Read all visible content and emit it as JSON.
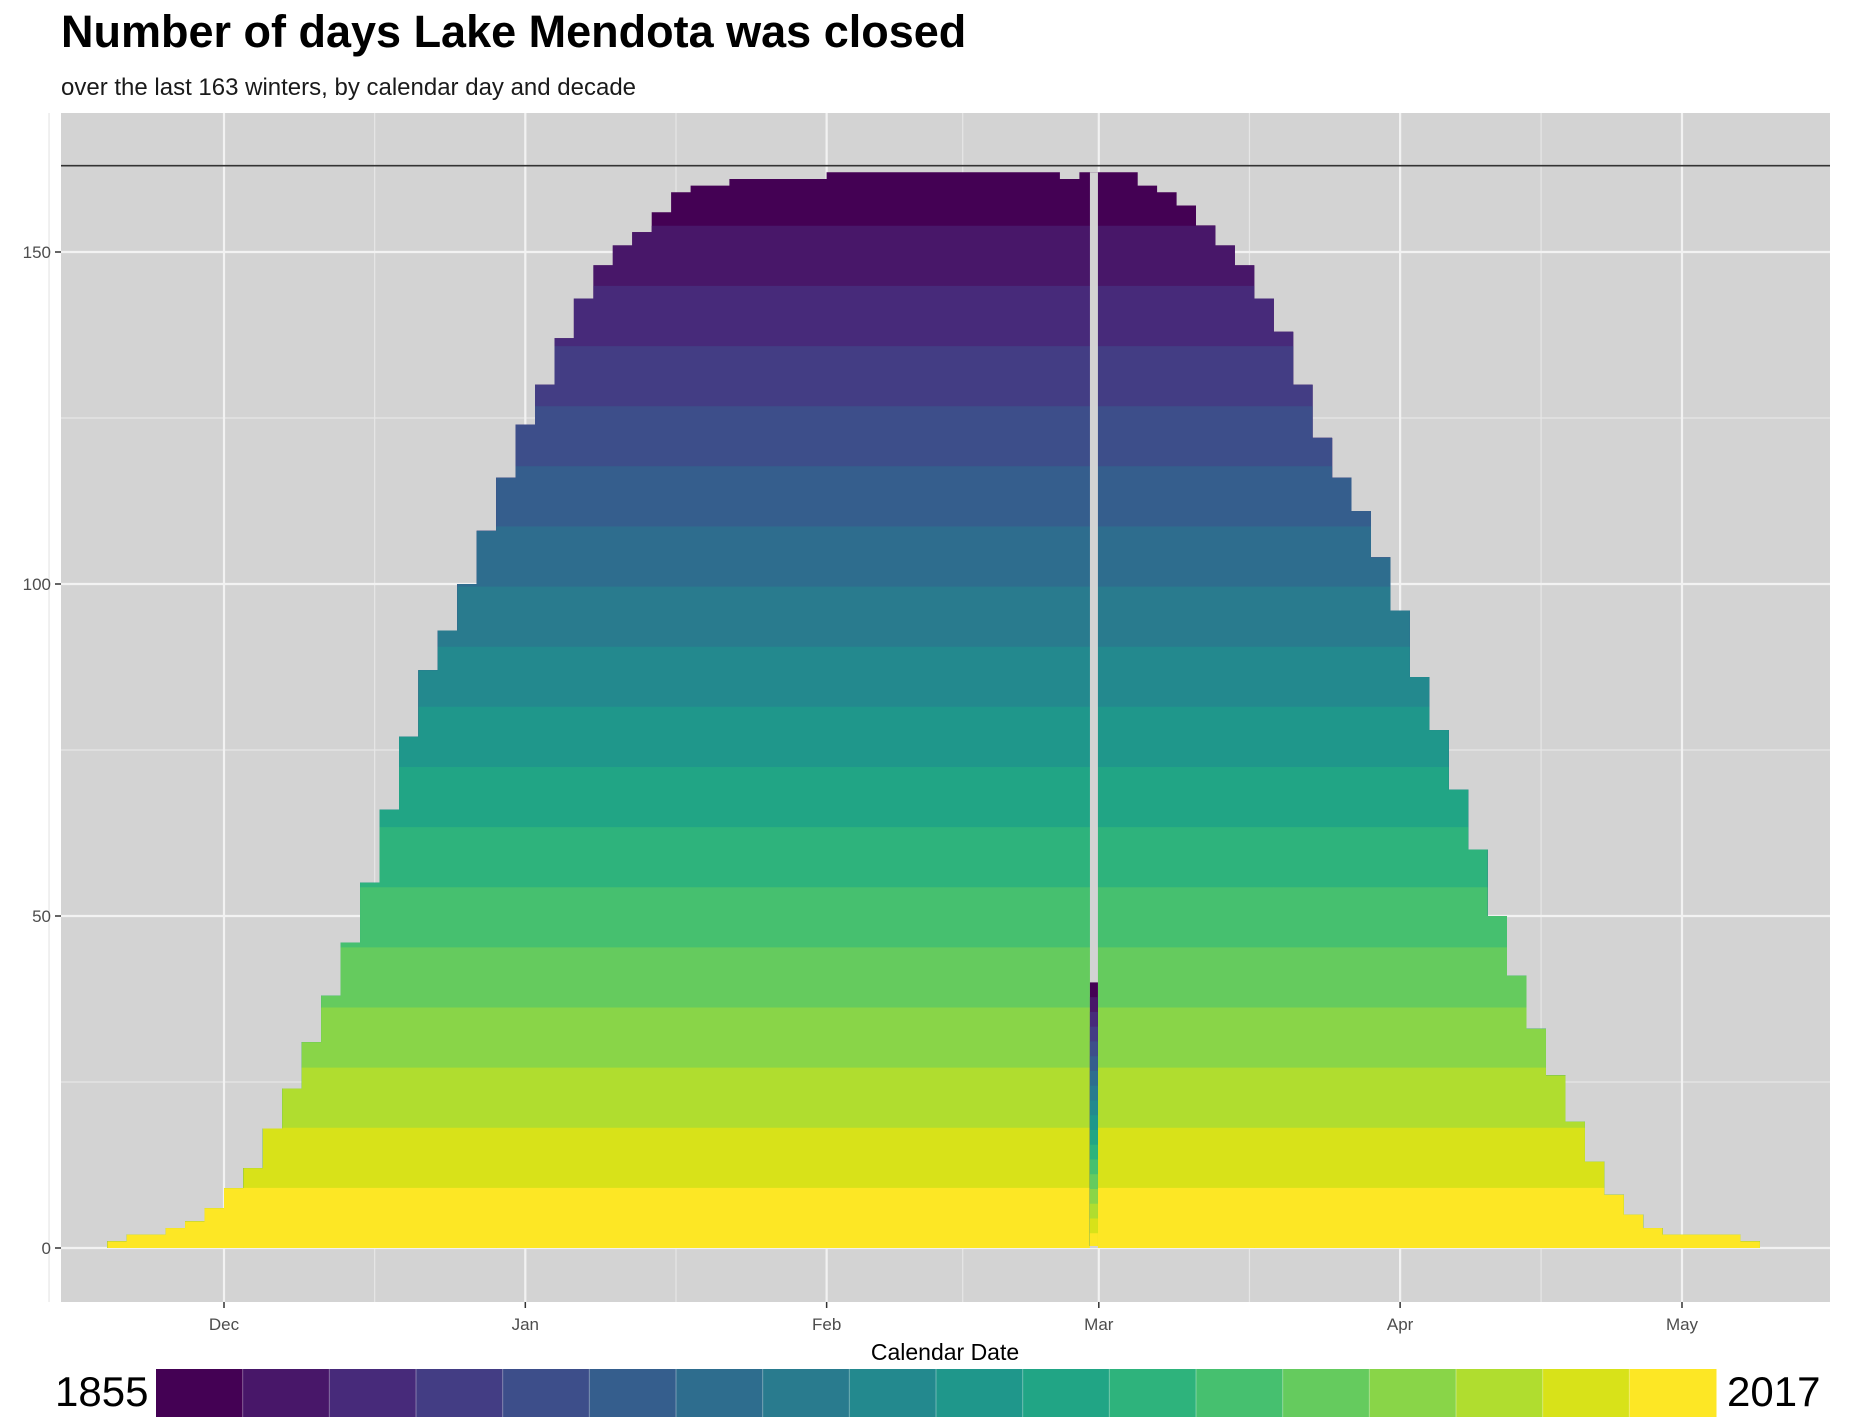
{
  "header": {
    "title": "Number of days Lake Mendota was closed",
    "subtitle": "over the last 163 winters, by calendar day and decade"
  },
  "chart_data": {
    "type": "area",
    "title": "Number of days Lake Mendota was closed",
    "subtitle": "over the last 163 winters, by calendar day and decade",
    "xlabel": "Calendar Date",
    "ylabel": "",
    "x_axis": {
      "ticks": [
        "Dec",
        "Jan",
        "Feb",
        "Mar",
        "Apr",
        "May"
      ],
      "range_days_from_dec1": [
        -17,
        163
      ]
    },
    "ylim": [
      -8,
      167
    ],
    "y_ticks": [
      0,
      50,
      100,
      150
    ],
    "reference_line": 163,
    "grid": true,
    "background": "#d3d3d3",
    "legend": {
      "position": "bottom",
      "min_label": "1855",
      "max_label": "2017",
      "type": "colorbar"
    },
    "decades": [
      "1850s",
      "1860s",
      "1870s",
      "1880s",
      "1890s",
      "1900s",
      "1910s",
      "1920s",
      "1930s",
      "1940s",
      "1950s",
      "1960s",
      "1970s",
      "1980s",
      "1990s",
      "2000s",
      "2010s"
    ],
    "colors": [
      "#440154",
      "#481769",
      "#472a7a",
      "#433d84",
      "#3d4e8a",
      "#355e8d",
      "#2e6d8e",
      "#297b8e",
      "#23898e",
      "#1f978b",
      "#21a585",
      "#2eb37c",
      "#46c06f",
      "#65cb5e",
      "#89d548",
      "#b0dd2f",
      "#d8e219",
      "#fde725"
    ],
    "total_closed_profile": {
      "days_from_dec1": [
        -12,
        -10,
        -8,
        -6,
        -4,
        -2,
        0,
        2,
        4,
        6,
        8,
        10,
        12,
        14,
        16,
        18,
        20,
        22,
        24,
        26,
        28,
        30,
        32,
        34,
        36,
        38,
        40,
        42,
        44,
        46,
        48,
        50,
        52,
        54,
        56,
        58,
        60,
        62,
        64,
        66,
        68,
        70,
        72,
        74,
        76,
        78,
        80,
        82,
        84,
        86,
        88,
        90,
        92,
        94,
        96,
        98,
        100,
        102,
        104,
        106,
        108,
        110,
        112,
        114,
        116,
        118,
        120,
        122,
        124,
        126,
        128,
        130,
        132,
        134,
        136,
        138,
        140,
        142,
        144,
        146,
        148,
        150,
        152,
        154,
        156
      ],
      "days_closed": [
        1,
        2,
        2,
        3,
        4,
        6,
        9,
        12,
        18,
        24,
        31,
        38,
        46,
        55,
        66,
        77,
        87,
        93,
        100,
        108,
        116,
        124,
        130,
        137,
        143,
        148,
        151,
        153,
        156,
        159,
        160,
        160,
        161,
        161,
        161,
        161,
        161,
        162,
        162,
        162,
        162,
        162,
        162,
        162,
        162,
        162,
        162,
        162,
        162,
        161,
        162,
        162,
        162,
        160,
        159,
        157,
        154,
        151,
        148,
        143,
        138,
        130,
        122,
        116,
        111,
        104,
        96,
        86,
        78,
        69,
        60,
        50,
        41,
        33,
        26,
        19,
        13,
        8,
        5,
        3,
        2,
        2,
        2,
        2,
        1
      ]
    },
    "feb29_column": {
      "label": "Feb 29",
      "days_closed": 40
    }
  }
}
